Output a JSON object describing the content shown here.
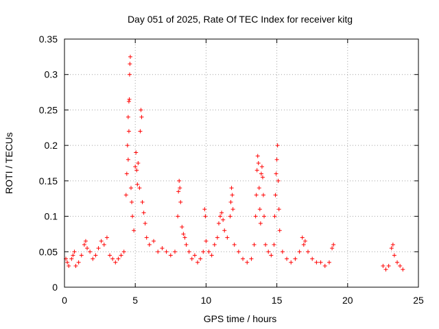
{
  "chart_data": {
    "type": "scatter",
    "title": "Day 051 of 2025, Rate Of TEC Index for receiver kitg",
    "xlabel": "GPS time / hours",
    "ylabel": "ROTI / TECUs",
    "xlim": [
      0,
      25
    ],
    "ylim": [
      0,
      0.35
    ],
    "grid": true,
    "marker": "+",
    "color": "#ff0000",
    "x_ticks": [
      {
        "value": 0,
        "label": "0"
      },
      {
        "value": 5,
        "label": "5"
      },
      {
        "value": 10,
        "label": "10"
      },
      {
        "value": 15,
        "label": "15"
      },
      {
        "value": 20,
        "label": "20"
      },
      {
        "value": 25,
        "label": "25"
      }
    ],
    "y_ticks": [
      {
        "value": 0,
        "label": "0"
      },
      {
        "value": 0.05,
        "label": "0.05"
      },
      {
        "value": 0.1,
        "label": "0.1"
      },
      {
        "value": 0.15,
        "label": "0.15"
      },
      {
        "value": 0.2,
        "label": "0.2"
      },
      {
        "value": 0.25,
        "label": "0.25"
      },
      {
        "value": 0.3,
        "label": "0.3"
      },
      {
        "value": 0.35,
        "label": "0.35"
      }
    ],
    "series": [
      {
        "name": "ROTI",
        "points": [
          [
            0.1,
            0.04
          ],
          [
            0.2,
            0.035
          ],
          [
            0.3,
            0.03
          ],
          [
            0.5,
            0.04
          ],
          [
            0.6,
            0.045
          ],
          [
            0.7,
            0.05
          ],
          [
            0.8,
            0.03
          ],
          [
            1.0,
            0.035
          ],
          [
            1.2,
            0.045
          ],
          [
            1.4,
            0.06
          ],
          [
            1.5,
            0.065
          ],
          [
            1.6,
            0.055
          ],
          [
            1.8,
            0.05
          ],
          [
            2.0,
            0.04
          ],
          [
            2.2,
            0.045
          ],
          [
            2.4,
            0.055
          ],
          [
            2.6,
            0.065
          ],
          [
            2.8,
            0.06
          ],
          [
            3.0,
            0.07
          ],
          [
            3.2,
            0.045
          ],
          [
            3.4,
            0.04
          ],
          [
            3.6,
            0.035
          ],
          [
            3.8,
            0.04
          ],
          [
            4.0,
            0.045
          ],
          [
            4.2,
            0.05
          ],
          [
            4.35,
            0.13
          ],
          [
            4.4,
            0.16
          ],
          [
            4.45,
            0.2
          ],
          [
            4.5,
            0.24
          ],
          [
            4.55,
            0.262
          ],
          [
            4.58,
            0.265
          ],
          [
            4.6,
            0.3
          ],
          [
            4.62,
            0.315
          ],
          [
            4.65,
            0.325
          ],
          [
            4.55,
            0.22
          ],
          [
            4.5,
            0.18
          ],
          [
            4.7,
            0.14
          ],
          [
            4.75,
            0.12
          ],
          [
            4.8,
            0.1
          ],
          [
            4.9,
            0.08
          ],
          [
            5.0,
            0.17
          ],
          [
            5.05,
            0.19
          ],
          [
            5.1,
            0.165
          ],
          [
            5.15,
            0.145
          ],
          [
            5.2,
            0.175
          ],
          [
            5.3,
            0.14
          ],
          [
            5.35,
            0.22
          ],
          [
            5.4,
            0.25
          ],
          [
            5.45,
            0.24
          ],
          [
            5.5,
            0.12
          ],
          [
            5.6,
            0.105
          ],
          [
            5.7,
            0.09
          ],
          [
            5.8,
            0.07
          ],
          [
            6.0,
            0.06
          ],
          [
            6.3,
            0.065
          ],
          [
            6.6,
            0.05
          ],
          [
            6.9,
            0.055
          ],
          [
            7.2,
            0.05
          ],
          [
            7.5,
            0.045
          ],
          [
            7.8,
            0.05
          ],
          [
            8.0,
            0.1
          ],
          [
            8.05,
            0.135
          ],
          [
            8.1,
            0.15
          ],
          [
            8.15,
            0.14
          ],
          [
            8.2,
            0.12
          ],
          [
            8.3,
            0.085
          ],
          [
            8.4,
            0.075
          ],
          [
            8.5,
            0.07
          ],
          [
            8.6,
            0.06
          ],
          [
            8.8,
            0.05
          ],
          [
            9.0,
            0.04
          ],
          [
            9.2,
            0.045
          ],
          [
            9.4,
            0.035
          ],
          [
            9.6,
            0.04
          ],
          [
            9.8,
            0.05
          ],
          [
            9.9,
            0.11
          ],
          [
            9.95,
            0.1
          ],
          [
            10.0,
            0.065
          ],
          [
            10.2,
            0.05
          ],
          [
            10.4,
            0.045
          ],
          [
            10.6,
            0.06
          ],
          [
            10.8,
            0.07
          ],
          [
            10.9,
            0.09
          ],
          [
            11.0,
            0.1
          ],
          [
            11.1,
            0.105
          ],
          [
            11.2,
            0.095
          ],
          [
            11.3,
            0.08
          ],
          [
            11.5,
            0.07
          ],
          [
            11.7,
            0.1
          ],
          [
            11.75,
            0.12
          ],
          [
            11.8,
            0.14
          ],
          [
            11.85,
            0.13
          ],
          [
            11.9,
            0.11
          ],
          [
            12.0,
            0.06
          ],
          [
            12.3,
            0.05
          ],
          [
            12.6,
            0.04
          ],
          [
            12.9,
            0.035
          ],
          [
            13.2,
            0.04
          ],
          [
            13.4,
            0.06
          ],
          [
            13.5,
            0.1
          ],
          [
            13.55,
            0.13
          ],
          [
            13.6,
            0.165
          ],
          [
            13.65,
            0.185
          ],
          [
            13.7,
            0.175
          ],
          [
            13.75,
            0.14
          ],
          [
            13.8,
            0.11
          ],
          [
            13.85,
            0.09
          ],
          [
            13.9,
            0.16
          ],
          [
            13.95,
            0.17
          ],
          [
            14.0,
            0.155
          ],
          [
            14.05,
            0.13
          ],
          [
            14.1,
            0.1
          ],
          [
            14.2,
            0.06
          ],
          [
            14.4,
            0.05
          ],
          [
            14.6,
            0.045
          ],
          [
            14.8,
            0.06
          ],
          [
            14.85,
            0.1
          ],
          [
            14.9,
            0.13
          ],
          [
            14.95,
            0.16
          ],
          [
            15.0,
            0.18
          ],
          [
            15.05,
            0.2
          ],
          [
            15.1,
            0.15
          ],
          [
            15.15,
            0.11
          ],
          [
            15.2,
            0.08
          ],
          [
            15.4,
            0.05
          ],
          [
            15.7,
            0.04
          ],
          [
            16.0,
            0.035
          ],
          [
            16.3,
            0.04
          ],
          [
            16.6,
            0.05
          ],
          [
            16.8,
            0.07
          ],
          [
            16.9,
            0.06
          ],
          [
            17.0,
            0.065
          ],
          [
            17.2,
            0.05
          ],
          [
            17.5,
            0.04
          ],
          [
            17.8,
            0.035
          ],
          [
            18.1,
            0.035
          ],
          [
            18.4,
            0.03
          ],
          [
            18.7,
            0.035
          ],
          [
            18.9,
            0.055
          ],
          [
            19.0,
            0.06
          ],
          [
            22.5,
            0.03
          ],
          [
            22.7,
            0.025
          ],
          [
            22.9,
            0.03
          ],
          [
            23.1,
            0.055
          ],
          [
            23.2,
            0.06
          ],
          [
            23.3,
            0.045
          ],
          [
            23.5,
            0.035
          ],
          [
            23.7,
            0.03
          ],
          [
            23.9,
            0.025
          ]
        ]
      }
    ]
  }
}
